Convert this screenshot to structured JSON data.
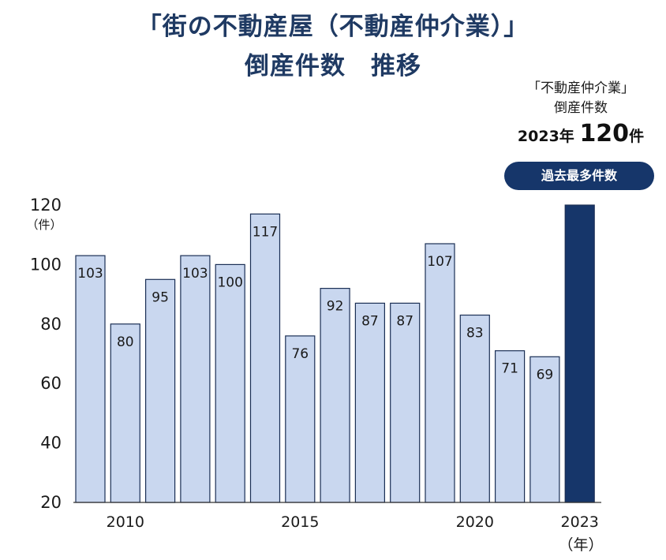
{
  "title_line1": "「街の不動産屋（不動産仲介業）」",
  "title_line2": "倒産件数　推移",
  "callout": {
    "line1": "「不動産仲介業」",
    "line2": "倒産件数",
    "year": "2023年",
    "count": "120",
    "unit": "件",
    "badge": "過去最多件数"
  },
  "colors": {
    "bar": "#c9d7ef",
    "bar_stroke": "#1b2f55",
    "highlight": "#16366a",
    "title": "#1f3a63"
  },
  "chart_data": {
    "type": "bar",
    "x": [
      2009,
      2010,
      2011,
      2012,
      2013,
      2014,
      2015,
      2016,
      2017,
      2018,
      2019,
      2020,
      2021,
      2022,
      2023
    ],
    "values": [
      103,
      80,
      95,
      103,
      100,
      117,
      76,
      92,
      87,
      87,
      107,
      83,
      71,
      69,
      120
    ],
    "data_labels": [
      "103",
      "80",
      "95",
      "103",
      "100",
      "117",
      "76",
      "92",
      "87",
      "87",
      "107",
      "83",
      "71",
      "69",
      ""
    ],
    "highlight_index": 14,
    "ylim": [
      20,
      120
    ],
    "yticks": [
      "20",
      "40",
      "60",
      "80",
      "100",
      "120"
    ],
    "ylabel": "（件）",
    "xtick_labels": [
      {
        "index": 1,
        "label": "2010"
      },
      {
        "index": 6,
        "label": "2015"
      },
      {
        "index": 11,
        "label": "2020"
      },
      {
        "index": 14,
        "label": "2023"
      }
    ],
    "xlabel": "（年）",
    "grid": false
  }
}
